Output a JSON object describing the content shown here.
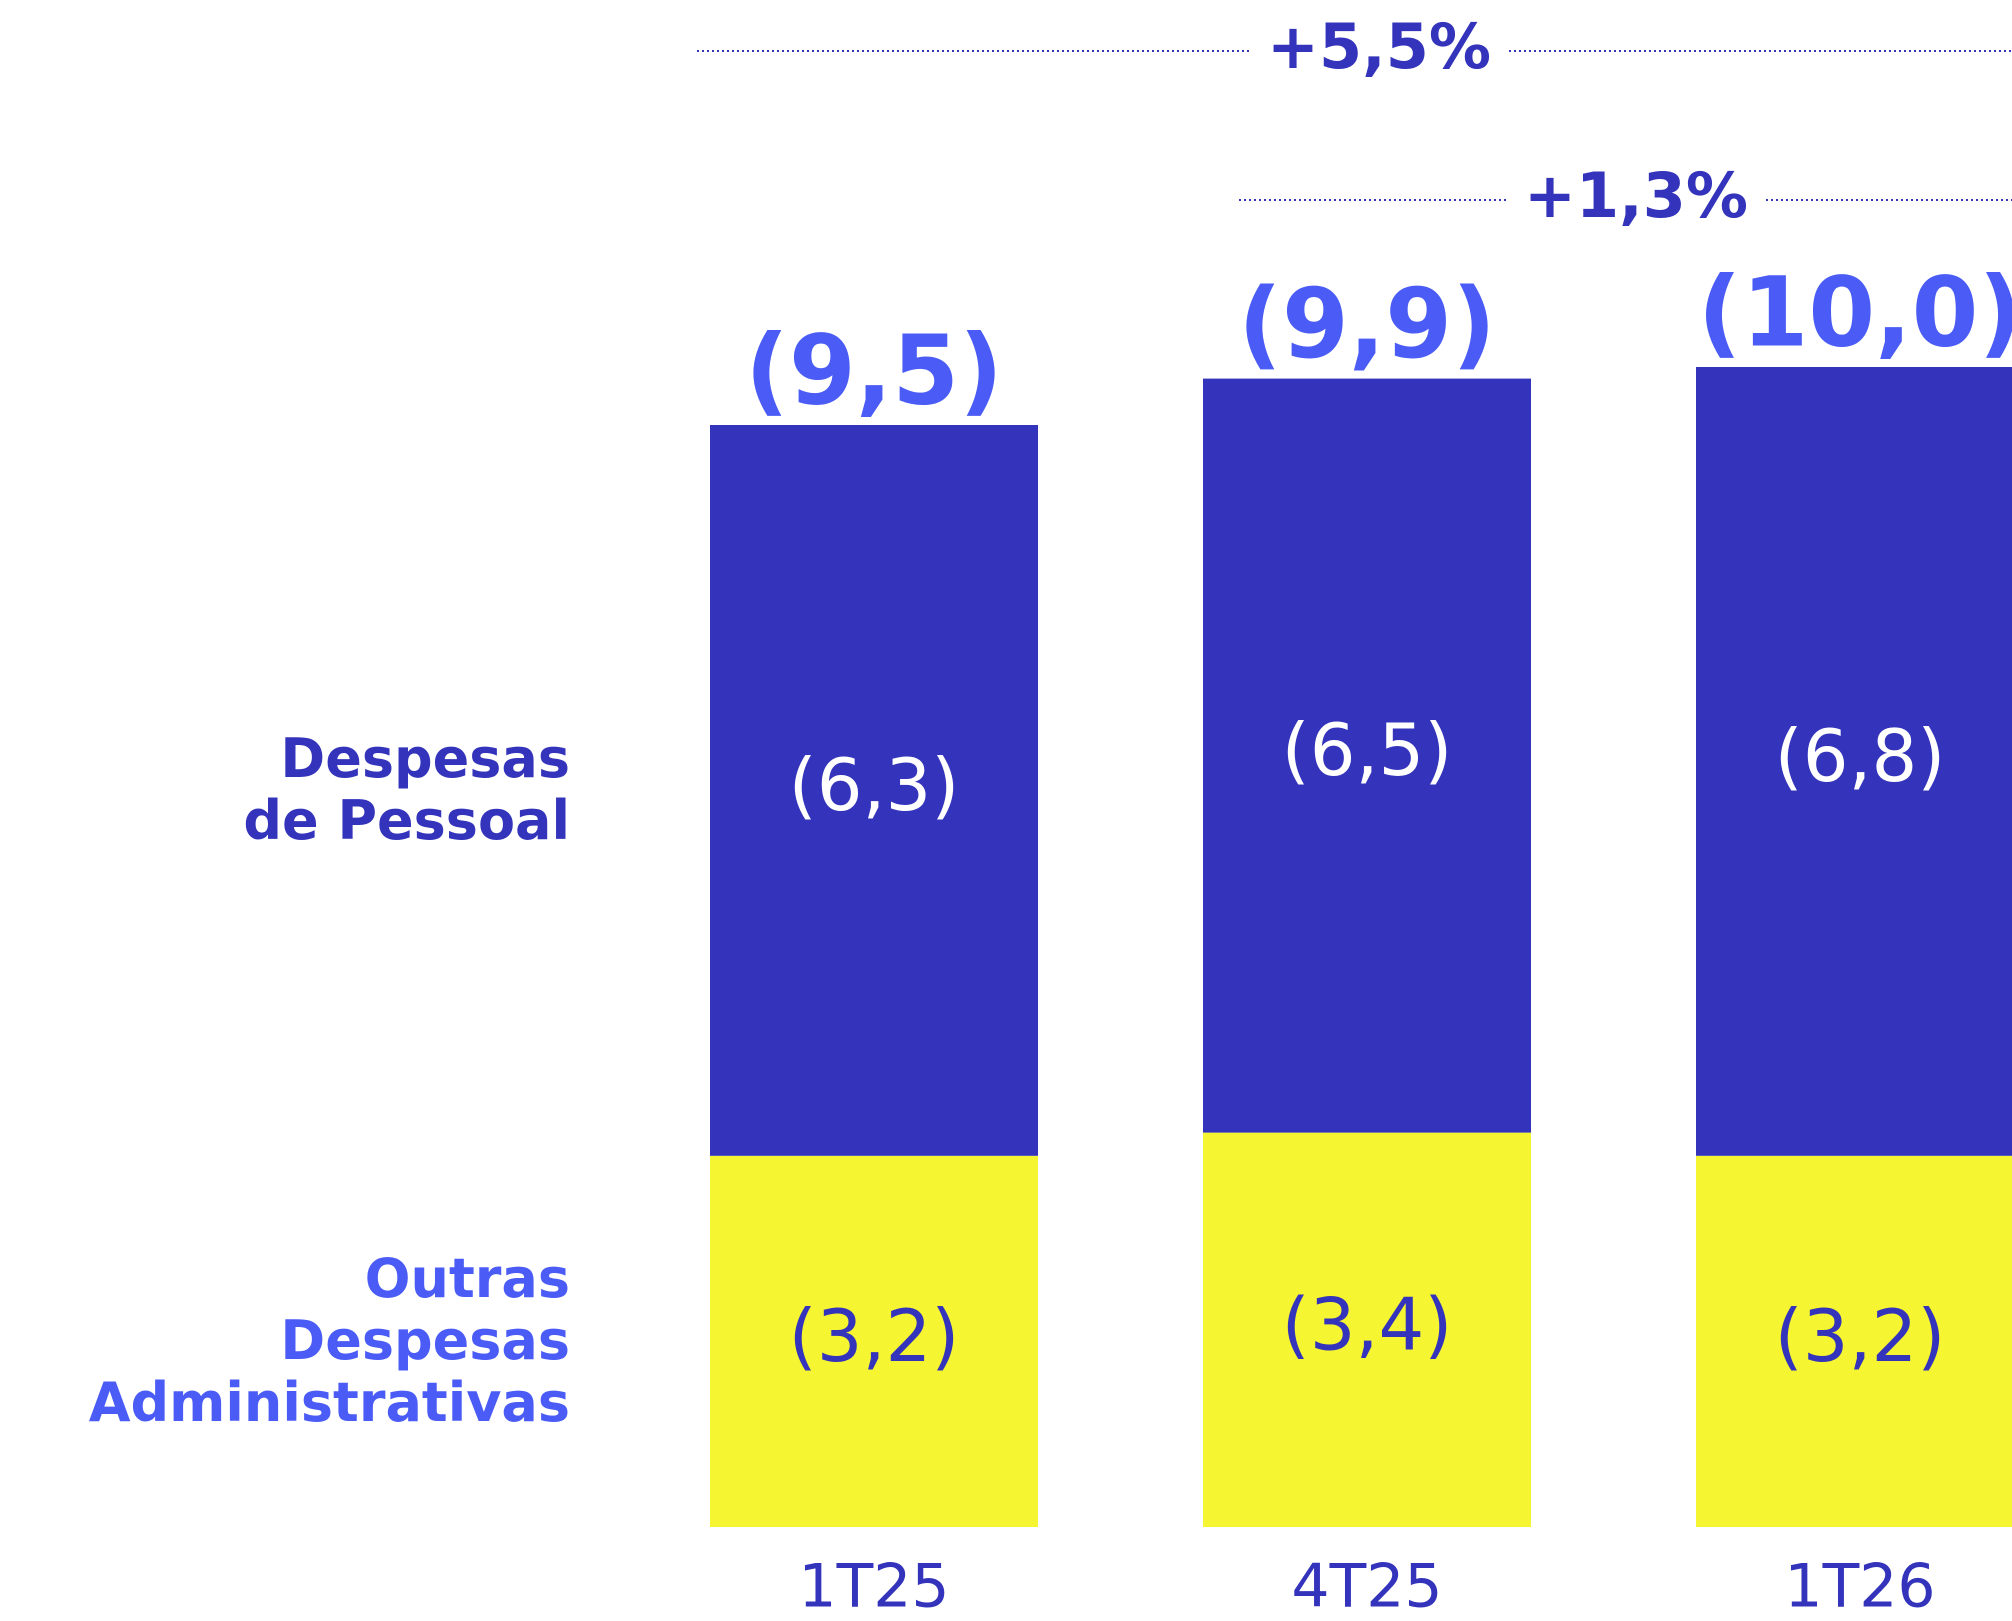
{
  "chart_data": {
    "type": "stacked_bar",
    "categories": [
      "1T25",
      "4T25",
      "1T26"
    ],
    "series": [
      {
        "name": "Outras\nDespesas\nAdministrativas",
        "color": "#f5f531",
        "label_color": "#4a5cf5",
        "text_color": "#3333bb",
        "values": [
          3.2,
          3.4,
          3.2
        ],
        "value_labels": [
          "(3,2)",
          "(3,4)",
          "(3,2)"
        ]
      },
      {
        "name": "Despesas\nde Pessoal",
        "color": "#3333bb",
        "label_color": "#3333bb",
        "text_color": "#ffffff",
        "values": [
          6.3,
          6.5,
          6.8
        ],
        "value_labels": [
          "(6,3)",
          "(6,5)",
          "(6,8)"
        ]
      }
    ],
    "totals": {
      "color": "#4a5cf5",
      "values": [
        9.5,
        9.9,
        10.0
      ],
      "value_labels": [
        "(9,5)",
        "(9,9)",
        "(10,0)"
      ]
    },
    "annotations": [
      {
        "text": "+5,5%"
      },
      {
        "text": "+1,3%"
      }
    ]
  }
}
